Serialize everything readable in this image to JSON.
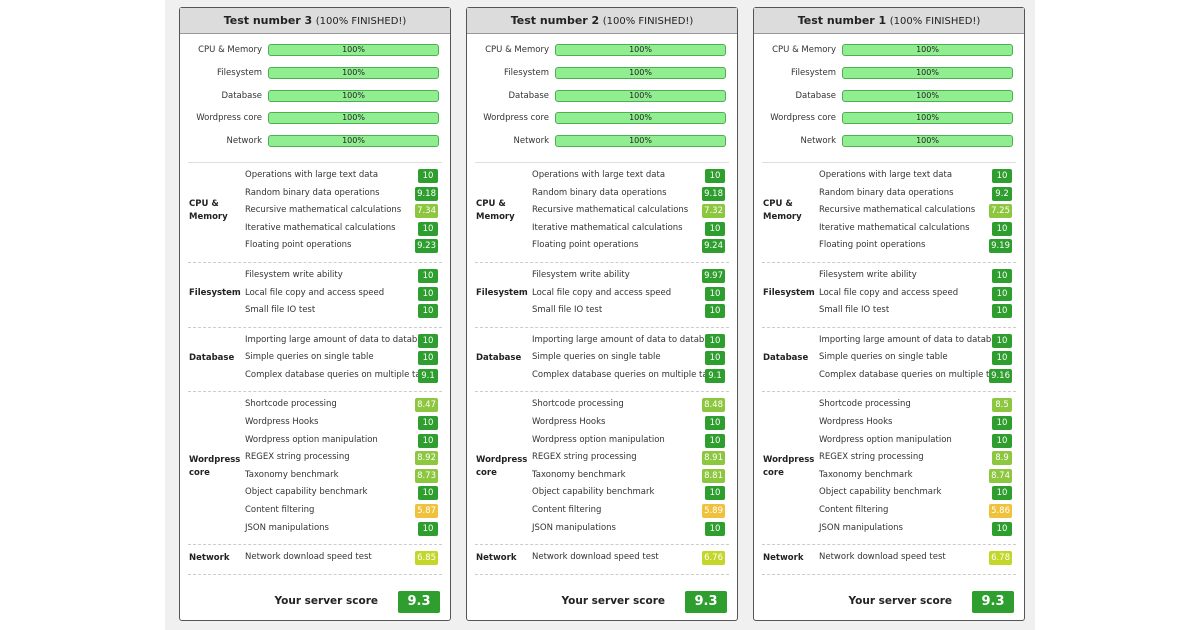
{
  "panels": [
    {
      "title": "Test number 3",
      "status": "(100% FINISHED!)",
      "progress": [
        {
          "label": "CPU & Memory",
          "value": "100%"
        },
        {
          "label": "Filesystem",
          "value": "100%"
        },
        {
          "label": "Database",
          "value": "100%"
        },
        {
          "label": "Wordpress core",
          "value": "100%"
        },
        {
          "label": "Network",
          "value": "100%"
        }
      ],
      "groups": [
        {
          "name": "CPU & Memory",
          "tests": [
            {
              "label": "Operations with large text data",
              "score": 10
            },
            {
              "label": "Random binary data operations",
              "score": 9.18
            },
            {
              "label": "Recursive mathematical calculations",
              "score": 7.34
            },
            {
              "label": "Iterative mathematical calculations",
              "score": 10
            },
            {
              "label": "Floating point operations",
              "score": 9.23
            }
          ]
        },
        {
          "name": "Filesystem",
          "tests": [
            {
              "label": "Filesystem write ability",
              "score": 10
            },
            {
              "label": "Local file copy and access speed",
              "score": 10
            },
            {
              "label": "Small file IO test",
              "score": 10
            }
          ]
        },
        {
          "name": "Database",
          "tests": [
            {
              "label": "Importing large amount of data to database",
              "score": 10
            },
            {
              "label": "Simple queries on single table",
              "score": 10
            },
            {
              "label": "Complex database queries on multiple tables",
              "score": 9.1
            }
          ]
        },
        {
          "name": "Wordpress core",
          "tests": [
            {
              "label": "Shortcode processing",
              "score": 8.47
            },
            {
              "label": "Wordpress Hooks",
              "score": 10
            },
            {
              "label": "Wordpress option manipulation",
              "score": 10
            },
            {
              "label": "REGEX string processing",
              "score": 8.92
            },
            {
              "label": "Taxonomy benchmark",
              "score": 8.73
            },
            {
              "label": "Object capability benchmark",
              "score": 10
            },
            {
              "label": "Content filtering",
              "score": 5.87
            },
            {
              "label": "JSON manipulations",
              "score": 10
            }
          ]
        },
        {
          "name": "Network",
          "tests": [
            {
              "label": "Network download speed test",
              "score": 6.85
            }
          ]
        }
      ],
      "score_label": "Your server score",
      "score": 9.3
    },
    {
      "title": "Test number 2",
      "status": "(100% FINISHED!)",
      "progress": [
        {
          "label": "CPU & Memory",
          "value": "100%"
        },
        {
          "label": "Filesystem",
          "value": "100%"
        },
        {
          "label": "Database",
          "value": "100%"
        },
        {
          "label": "Wordpress core",
          "value": "100%"
        },
        {
          "label": "Network",
          "value": "100%"
        }
      ],
      "groups": [
        {
          "name": "CPU & Memory",
          "tests": [
            {
              "label": "Operations with large text data",
              "score": 10
            },
            {
              "label": "Random binary data operations",
              "score": 9.18
            },
            {
              "label": "Recursive mathematical calculations",
              "score": 7.32
            },
            {
              "label": "Iterative mathematical calculations",
              "score": 10
            },
            {
              "label": "Floating point operations",
              "score": 9.24
            }
          ]
        },
        {
          "name": "Filesystem",
          "tests": [
            {
              "label": "Filesystem write ability",
              "score": 9.97
            },
            {
              "label": "Local file copy and access speed",
              "score": 10
            },
            {
              "label": "Small file IO test",
              "score": 10
            }
          ]
        },
        {
          "name": "Database",
          "tests": [
            {
              "label": "Importing large amount of data to database",
              "score": 10
            },
            {
              "label": "Simple queries on single table",
              "score": 10
            },
            {
              "label": "Complex database queries on multiple tables",
              "score": 9.1
            }
          ]
        },
        {
          "name": "Wordpress core",
          "tests": [
            {
              "label": "Shortcode processing",
              "score": 8.48
            },
            {
              "label": "Wordpress Hooks",
              "score": 10
            },
            {
              "label": "Wordpress option manipulation",
              "score": 10
            },
            {
              "label": "REGEX string processing",
              "score": 8.91
            },
            {
              "label": "Taxonomy benchmark",
              "score": 8.81
            },
            {
              "label": "Object capability benchmark",
              "score": 10
            },
            {
              "label": "Content filtering",
              "score": 5.89
            },
            {
              "label": "JSON manipulations",
              "score": 10
            }
          ]
        },
        {
          "name": "Network",
          "tests": [
            {
              "label": "Network download speed test",
              "score": 6.76
            }
          ]
        }
      ],
      "score_label": "Your server score",
      "score": 9.3
    },
    {
      "title": "Test number 1",
      "status": "(100% FINISHED!)",
      "progress": [
        {
          "label": "CPU & Memory",
          "value": "100%"
        },
        {
          "label": "Filesystem",
          "value": "100%"
        },
        {
          "label": "Database",
          "value": "100%"
        },
        {
          "label": "Wordpress core",
          "value": "100%"
        },
        {
          "label": "Network",
          "value": "100%"
        }
      ],
      "groups": [
        {
          "name": "CPU & Memory",
          "tests": [
            {
              "label": "Operations with large text data",
              "score": 10
            },
            {
              "label": "Random binary data operations",
              "score": 9.2
            },
            {
              "label": "Recursive mathematical calculations",
              "score": 7.25
            },
            {
              "label": "Iterative mathematical calculations",
              "score": 10
            },
            {
              "label": "Floating point operations",
              "score": 9.19
            }
          ]
        },
        {
          "name": "Filesystem",
          "tests": [
            {
              "label": "Filesystem write ability",
              "score": 10
            },
            {
              "label": "Local file copy and access speed",
              "score": 10
            },
            {
              "label": "Small file IO test",
              "score": 10
            }
          ]
        },
        {
          "name": "Database",
          "tests": [
            {
              "label": "Importing large amount of data to database",
              "score": 10
            },
            {
              "label": "Simple queries on single table",
              "score": 10
            },
            {
              "label": "Complex database queries on multiple tables",
              "score": 9.16
            }
          ]
        },
        {
          "name": "Wordpress core",
          "tests": [
            {
              "label": "Shortcode processing",
              "score": 8.5
            },
            {
              "label": "Wordpress Hooks",
              "score": 10
            },
            {
              "label": "Wordpress option manipulation",
              "score": 10
            },
            {
              "label": "REGEX string processing",
              "score": 8.9
            },
            {
              "label": "Taxonomy benchmark",
              "score": 8.74
            },
            {
              "label": "Object capability benchmark",
              "score": 10
            },
            {
              "label": "Content filtering",
              "score": 5.86
            },
            {
              "label": "JSON manipulations",
              "score": 10
            }
          ]
        },
        {
          "name": "Network",
          "tests": [
            {
              "label": "Network download speed test",
              "score": 6.78
            }
          ]
        }
      ],
      "score_label": "Your server score",
      "score": 9.3
    }
  ]
}
